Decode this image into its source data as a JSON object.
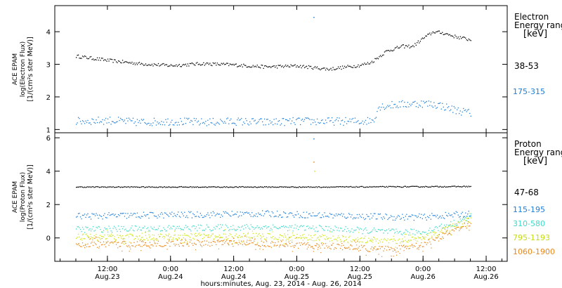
{
  "chart_data": [
    {
      "type": "scatter",
      "panel": "electron",
      "ylabel_lines": [
        "ACE EPAM",
        "log(Electron Flux)",
        "[1/(cm²s ster MeV)]"
      ],
      "ylim": [
        0.9,
        4.8
      ],
      "yticks": [
        1,
        2,
        3,
        4
      ],
      "legend_title_lines": [
        "Electron",
        "Energy ranges",
        "[keV]"
      ],
      "legend_placement": "right",
      "grid": false,
      "series": [
        {
          "name": "38-53",
          "color": "#000000",
          "points": [
            [
              "2014-08-23T06:00",
              3.25
            ],
            [
              "2014-08-23T12:00",
              3.12
            ],
            [
              "2014-08-23T18:00",
              3.02
            ],
            [
              "2014-08-24T00:00",
              2.96
            ],
            [
              "2014-08-24T06:00",
              3.02
            ],
            [
              "2014-08-24T12:00",
              2.98
            ],
            [
              "2014-08-24T18:00",
              2.92
            ],
            [
              "2014-08-25T00:00",
              2.95
            ],
            [
              "2014-08-25T06:00",
              2.85
            ],
            [
              "2014-08-25T12:00",
              2.97
            ],
            [
              "2014-08-25T14:00",
              3.05
            ],
            [
              "2014-08-25T17:00",
              3.4
            ],
            [
              "2014-08-25T20:00",
              3.55
            ],
            [
              "2014-08-25T22:00",
              3.55
            ],
            [
              "2014-08-26T00:00",
              3.8
            ],
            [
              "2014-08-26T02:00",
              4.0
            ],
            [
              "2014-08-26T04:00",
              3.95
            ],
            [
              "2014-08-26T06:00",
              3.85
            ],
            [
              "2014-08-26T09:00",
              3.75
            ]
          ]
        },
        {
          "name": "175-315",
          "color": "#1f7fd8",
          "points": [
            [
              "2014-08-23T06:00",
              1.25
            ],
            [
              "2014-08-23T12:00",
              1.28
            ],
            [
              "2014-08-23T18:00",
              1.22
            ],
            [
              "2014-08-24T00:00",
              1.25
            ],
            [
              "2014-08-24T06:00",
              1.22
            ],
            [
              "2014-08-24T12:00",
              1.25
            ],
            [
              "2014-08-24T18:00",
              1.22
            ],
            [
              "2014-08-25T00:00",
              1.25
            ],
            [
              "2014-08-25T06:00",
              1.25
            ],
            [
              "2014-08-25T12:00",
              1.25
            ],
            [
              "2014-08-25T14:30",
              1.28
            ],
            [
              "2014-08-25T15:30",
              1.7
            ],
            [
              "2014-08-25T18:00",
              1.75
            ],
            [
              "2014-08-25T21:00",
              1.78
            ],
            [
              "2014-08-26T00:00",
              1.8
            ],
            [
              "2014-08-26T03:00",
              1.75
            ],
            [
              "2014-08-26T06:00",
              1.6
            ],
            [
              "2014-08-26T09:00",
              1.5
            ]
          ]
        }
      ]
    },
    {
      "type": "scatter",
      "panel": "proton",
      "ylabel_lines": [
        "ACE EPAM",
        "log(Proton Flux)",
        "[1/(cm²s ster MeV)]"
      ],
      "ylim": [
        -1.4,
        6.3
      ],
      "yticks": [
        0,
        2,
        4,
        6
      ],
      "legend_title_lines": [
        "Proton",
        "Energy ranges",
        "[keV]"
      ],
      "legend_placement": "right",
      "grid": false,
      "series": [
        {
          "name": "47-68",
          "color": "#000000",
          "points": [
            [
              "2014-08-23T06:00",
              3.05
            ],
            [
              "2014-08-24T06:00",
              3.05
            ],
            [
              "2014-08-25T06:00",
              3.05
            ],
            [
              "2014-08-26T09:00",
              3.08
            ]
          ]
        },
        {
          "name": "115-195",
          "color": "#1f7fd8",
          "points": [
            [
              "2014-08-23T06:00",
              1.3
            ],
            [
              "2014-08-23T18:00",
              1.35
            ],
            [
              "2014-08-24T06:00",
              1.4
            ],
            [
              "2014-08-24T18:00",
              1.45
            ],
            [
              "2014-08-25T06:00",
              1.35
            ],
            [
              "2014-08-25T18:00",
              1.25
            ],
            [
              "2014-08-26T00:00",
              1.25
            ],
            [
              "2014-08-26T09:00",
              1.45
            ]
          ]
        },
        {
          "name": "310-580",
          "color": "#3fd9c9",
          "points": [
            [
              "2014-08-23T06:00",
              0.5
            ],
            [
              "2014-08-23T18:00",
              0.55
            ],
            [
              "2014-08-24T06:00",
              0.6
            ],
            [
              "2014-08-24T18:00",
              0.65
            ],
            [
              "2014-08-25T06:00",
              0.55
            ],
            [
              "2014-08-25T18:00",
              0.35
            ],
            [
              "2014-08-26T00:00",
              0.35
            ],
            [
              "2014-08-26T06:00",
              0.9
            ],
            [
              "2014-08-26T09:00",
              1.3
            ]
          ]
        },
        {
          "name": "795-1193",
          "color": "#cfe61c",
          "points": [
            [
              "2014-08-23T06:00",
              0.05
            ],
            [
              "2014-08-23T18:00",
              0.05
            ],
            [
              "2014-08-24T06:00",
              0.1
            ],
            [
              "2014-08-24T18:00",
              0.1
            ],
            [
              "2014-08-25T06:00",
              0.0
            ],
            [
              "2014-08-25T18:00",
              -0.2
            ],
            [
              "2014-08-26T00:00",
              0.0
            ],
            [
              "2014-08-26T06:00",
              0.7
            ],
            [
              "2014-08-26T09:00",
              1.1
            ]
          ]
        },
        {
          "name": "1060-1900",
          "color": "#e8881c",
          "points": [
            [
              "2014-08-23T06:00",
              -0.4
            ],
            [
              "2014-08-23T18:00",
              -0.35
            ],
            [
              "2014-08-24T06:00",
              -0.3
            ],
            [
              "2014-08-24T18:00",
              -0.35
            ],
            [
              "2014-08-25T06:00",
              -0.5
            ],
            [
              "2014-08-25T18:00",
              -0.7
            ],
            [
              "2014-08-26T00:00",
              -0.4
            ],
            [
              "2014-08-26T06:00",
              0.5
            ],
            [
              "2014-08-26T09:00",
              0.8
            ]
          ]
        }
      ]
    }
  ],
  "x_axis": {
    "xlim": [
      "2014-08-23T02:00",
      "2014-08-26T16:00"
    ],
    "ticks": [
      {
        "time": "2014-08-23T12:00",
        "line1": "12:00",
        "line2": "Aug.23"
      },
      {
        "time": "2014-08-24T00:00",
        "line1": "0:00",
        "line2": "Aug.24"
      },
      {
        "time": "2014-08-24T12:00",
        "line1": "12:00",
        "line2": "Aug.24"
      },
      {
        "time": "2014-08-25T00:00",
        "line1": "0:00",
        "line2": "Aug.25"
      },
      {
        "time": "2014-08-25T12:00",
        "line1": "12:00",
        "line2": "Aug.25"
      },
      {
        "time": "2014-08-26T00:00",
        "line1": "0:00",
        "line2": "Aug.26"
      },
      {
        "time": "2014-08-26T12:00",
        "line1": "12:00",
        "line2": "Aug.26"
      }
    ],
    "label": "hours:minutes, Aug. 23, 2014 - Aug. 26, 2014"
  }
}
